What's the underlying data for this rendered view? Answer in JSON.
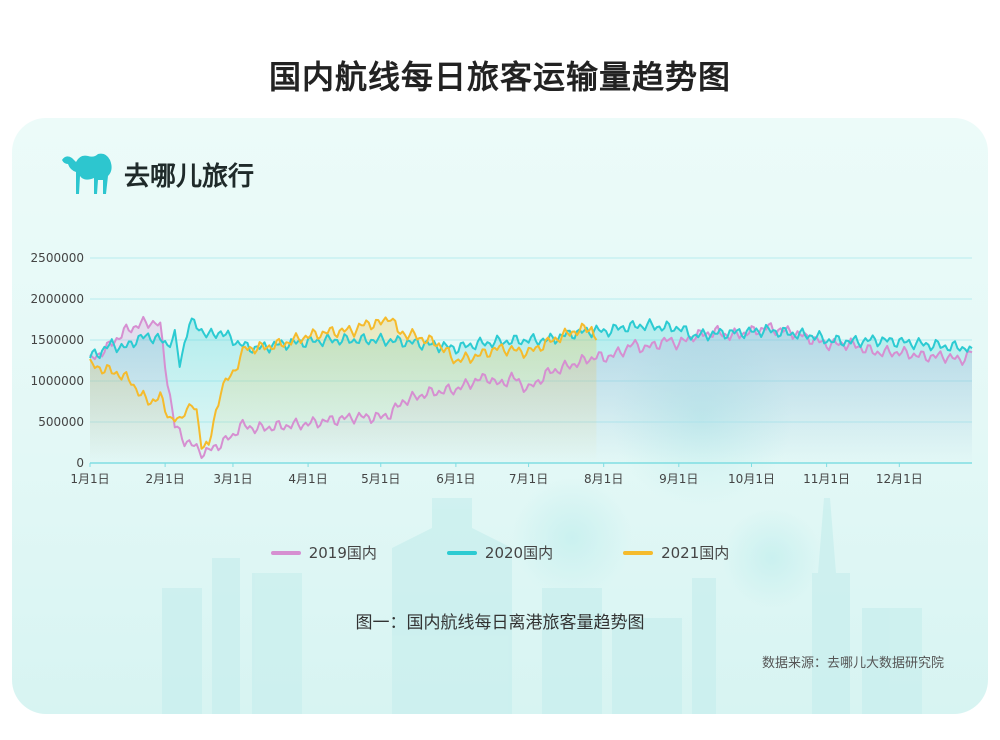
{
  "title": "国内航线每日旅客运输量趋势图",
  "brand": {
    "name": "去哪儿旅行",
    "icon": "camel-icon"
  },
  "caption": "图一：国内航线每日离港旅客量趋势图",
  "source": "数据来源：去哪儿大数据研究院",
  "colors": {
    "s2019": "#d68fd1",
    "s2020": "#2ccbd2",
    "s2021": "#f5bb2c",
    "grid": "#b7ecef",
    "axis": "#7fdde2",
    "tick": "#444444",
    "brand": "#2dc6cf"
  },
  "chart_data": {
    "type": "line",
    "title": "",
    "xlabel": "",
    "ylabel": "",
    "ylim": [
      0,
      2500000
    ],
    "yticks": [
      0,
      500000,
      1000000,
      1500000,
      2000000,
      2500000
    ],
    "ytick_labels": [
      "0",
      "500000",
      "1000000",
      "1500000",
      "2000000",
      "2500000"
    ],
    "xlim": [
      1,
      365
    ],
    "x_unit": "day of year",
    "xtick_labels": [
      "1月1日",
      "2月1日",
      "3月1日",
      "4月1日",
      "5月1日",
      "6月1日",
      "7月1日",
      "8月1日",
      "9月1日",
      "10月1日",
      "11月1日",
      "12月1日"
    ],
    "xtick_days": [
      1,
      32,
      60,
      91,
      121,
      152,
      182,
      213,
      244,
      274,
      305,
      335
    ],
    "grid": true,
    "legend": "bottom",
    "series": [
      {
        "name": "2019国内",
        "x": [
          1,
          8,
          15,
          22,
          28,
          30,
          33,
          36,
          40,
          44,
          48,
          52,
          56,
          60,
          63,
          70,
          80,
          91,
          100,
          110,
          121,
          125,
          130,
          140,
          152,
          160,
          165,
          170,
          175,
          182,
          190,
          200,
          210,
          213,
          220,
          225,
          230,
          240,
          244,
          250,
          260,
          265,
          274,
          280,
          290,
          300,
          305,
          315,
          325,
          335,
          345,
          355,
          360,
          365
        ],
        "values": [
          1250000,
          1400000,
          1600000,
          1700000,
          1720000,
          1650000,
          1000000,
          450000,
          280000,
          200000,
          120000,
          180000,
          260000,
          330000,
          460000,
          420000,
          450000,
          480000,
          520000,
          560000,
          560000,
          600000,
          750000,
          850000,
          900000,
          1000000,
          1050000,
          950000,
          1050000,
          900000,
          1100000,
          1200000,
          1300000,
          1280000,
          1350000,
          1450000,
          1400000,
          1500000,
          1450000,
          1550000,
          1600000,
          1550000,
          1600000,
          1650000,
          1600000,
          1500000,
          1450000,
          1450000,
          1350000,
          1350000,
          1300000,
          1300000,
          1250000,
          1350000
        ]
      },
      {
        "name": "2020国内",
        "x": [
          1,
          5,
          10,
          15,
          20,
          25,
          30,
          33,
          36,
          38,
          42,
          46,
          50,
          55,
          60,
          65,
          70,
          80,
          91,
          100,
          110,
          121,
          130,
          140,
          152,
          160,
          170,
          182,
          190,
          200,
          210,
          213,
          220,
          230,
          240,
          244,
          250,
          260,
          274,
          280,
          290,
          300,
          305,
          315,
          325,
          335,
          345,
          355,
          365
        ],
        "values": [
          1300000,
          1350000,
          1450000,
          1400000,
          1500000,
          1550000,
          1500000,
          1450000,
          1550000,
          1200000,
          1720000,
          1650000,
          1550000,
          1600000,
          1500000,
          1420000,
          1400000,
          1450000,
          1480000,
          1500000,
          1500000,
          1500000,
          1480000,
          1450000,
          1400000,
          1450000,
          1480000,
          1500000,
          1500000,
          1580000,
          1620000,
          1600000,
          1650000,
          1680000,
          1650000,
          1650000,
          1550000,
          1580000,
          1600000,
          1620000,
          1580000,
          1550000,
          1500000,
          1480000,
          1500000,
          1480000,
          1450000,
          1420000,
          1400000
        ]
      },
      {
        "name": "2021国内",
        "x": [
          1,
          6,
          12,
          18,
          22,
          26,
          30,
          34,
          38,
          40,
          43,
          45,
          47,
          50,
          55,
          60,
          65,
          70,
          80,
          91,
          100,
          110,
          115,
          121,
          125,
          128,
          135,
          145,
          150,
          152,
          160,
          170,
          182,
          192,
          200,
          208,
          210
        ],
        "values": [
          1200000,
          1150000,
          1100000,
          1000000,
          820000,
          750000,
          800000,
          550000,
          500000,
          650000,
          700000,
          600000,
          250000,
          200000,
          900000,
          1100000,
          1400000,
          1400000,
          1450000,
          1550000,
          1600000,
          1620000,
          1700000,
          1700000,
          1800000,
          1600000,
          1550000,
          1450000,
          1300000,
          1250000,
          1300000,
          1400000,
          1350000,
          1500000,
          1600000,
          1650000,
          1500000
        ]
      }
    ]
  }
}
